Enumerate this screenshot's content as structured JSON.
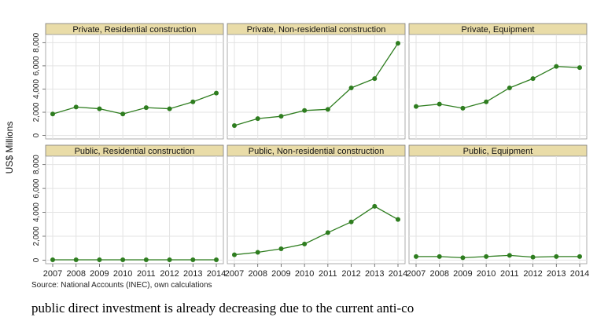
{
  "chart_data": {
    "type": "line",
    "ylabel": "US$ Millions",
    "x": [
      2007,
      2008,
      2009,
      2010,
      2011,
      2012,
      2013,
      2014
    ],
    "x_tick_labels": [
      "2007",
      "2008",
      "2009",
      "2010",
      "2011",
      "2012",
      "2013",
      "2014"
    ],
    "ylim": [
      -300,
      8700
    ],
    "y_ticks": [
      0,
      2000,
      4000,
      6000,
      8000
    ],
    "y_tick_labels": [
      "0",
      "2,000",
      "4,000",
      "6,000",
      "8,000"
    ],
    "grid": true,
    "line_color": "#2e7d1f",
    "strip_color": "#e9dca8",
    "panels": [
      {
        "title": "Private, Residential construction",
        "values": [
          1850,
          2450,
          2300,
          1850,
          2400,
          2300,
          2900,
          3650
        ]
      },
      {
        "title": "Private, Non-residential construction",
        "values": [
          850,
          1450,
          1650,
          2150,
          2250,
          4100,
          4900,
          7950
        ]
      },
      {
        "title": "Private, Equipment",
        "values": [
          2500,
          2700,
          2350,
          2900,
          4100,
          4900,
          5950,
          5850
        ]
      },
      {
        "title": "Public, Residential construction",
        "values": [
          30,
          30,
          30,
          30,
          30,
          30,
          30,
          30
        ]
      },
      {
        "title": "Public, Non-residential construction",
        "values": [
          450,
          650,
          950,
          1350,
          2300,
          3200,
          4500,
          3400
        ]
      },
      {
        "title": "Public, Equipment",
        "values": [
          300,
          300,
          200,
          300,
          400,
          250,
          300,
          300
        ]
      }
    ]
  },
  "source": "Source: National Accounts (INEC), own calculations",
  "body_text": "public direct investment is already decreasing due to the current anti-co"
}
